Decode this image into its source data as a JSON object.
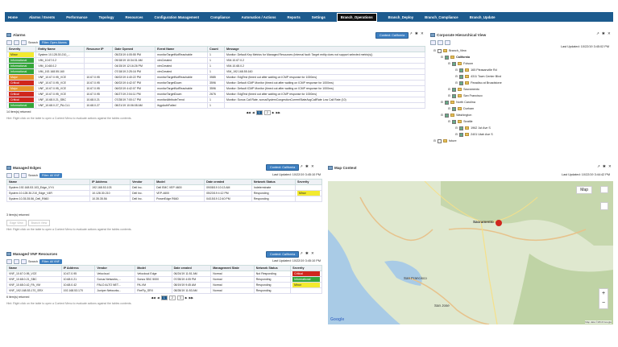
{
  "nav": {
    "items": [
      "Home",
      "Alarms / Events",
      "Performance",
      "Topology",
      "Resources",
      "Configuration Management",
      "Compliance",
      "Automation / Actions",
      "Reports",
      "Settings",
      "Branch_Operations",
      "Branch_Deploy",
      "Branch_Compliance",
      "Branch_Update"
    ],
    "active": "Branch_Operations"
  },
  "alarms": {
    "title": "Alarms",
    "context": "Context: California",
    "search_label": "Search",
    "filter": "Filter: Open Alarms",
    "columns": [
      "Severity",
      "Entity Name",
      "Resource IP",
      "Date Opened",
      "Event Name",
      "Count",
      "Message"
    ],
    "rows": [
      [
        "Minor",
        "System 10.128.30.210_...",
        "",
        "05/23/19 4:05:55 PM",
        "monitorTargetNotReachable",
        "1",
        "Monitor: Default Key Metrics for Managed Resources (Internal fault: Target entity does not support selected metric(s))"
      ],
      [
        "Informational",
        "VIM_10.67.0.2",
        "",
        "09/18/19 10:34:31 AM",
        "vimCreated",
        "1",
        "VIM-10.67.0.2"
      ],
      [
        "Informational",
        "VIM_10.68.0.2",
        "",
        "04/15/19 12:16:26 PM",
        "vimCreated",
        "1",
        "VIM-10.68.0.2"
      ],
      [
        "Informational",
        "VIM_192.168.55.160",
        "",
        "07/18/19 2:25:16 PM",
        "vimCreated",
        "1",
        "VIM_192.168.55.160"
      ],
      [
        "Major",
        "VNF_10.67.0.95_VCE",
        "10.67.0.95",
        "06/02/19 4:40:22 PM",
        "monitorTargetNotReachable",
        "3585",
        "Monitor: EdgTest (timed out after waiting on ICMP response for 1000ms)"
      ],
      [
        "Critical",
        "VNF_10.67.0.95_VCE",
        "10.67.0.95",
        "06/02/19 4:42:07 PM",
        "monitorTargetDown",
        "3596",
        "Monitor: Default ICMP Monitor (timed out after waiting on ICMP response for 1000ms)"
      ],
      [
        "Major",
        "VNF_10.67.0.95_VCE",
        "10.67.0.95",
        "06/02/19 4:42:07 PM",
        "monitorTargetNotReachable",
        "3596",
        "Monitor: Default ICMP Monitor (timed out after waiting on ICMP response for 1000ms)"
      ],
      [
        "Critical",
        "VNF_10.67.0.95_VCE",
        "10.67.0.95",
        "06/27/19 2:04:11 PM",
        "monitorTargetDown",
        "2676",
        "Monitor: EdgTest (timed out after waiting on ICMP response for 1000ms)"
      ],
      [
        "Critical",
        "VNF_10.68.0.21_SBC",
        "10.68.0.21",
        "07/28/19 7:00:17 PM",
        "monitorAttributeTrend",
        "1",
        "Monitor: Sonus Call Rate, sonusSystemCongestionCurrentStateAvgCallRate Low Call Rate (10)"
      ],
      [
        "Informational",
        "VNF_10.68.0.27_PA-CL1",
        "10.68.0.27",
        "08/21/19 10:06:08 AM",
        "ibgpAuthFailed",
        "1",
        ""
      ]
    ],
    "count": "14 item(s) returned",
    "hint": "Hint: Right click on the table to open a Context Menu to evaluate actions against the tables contents.",
    "pages": [
      "1",
      "2"
    ],
    "current_page": "1"
  },
  "hier": {
    "title": "Corporate Hierarchical View",
    "last_updated": "Last Updated: 10/22/19 3:45:02 PM",
    "nodes": [
      {
        "label": "Branch_View",
        "level": 0
      },
      {
        "label": "California",
        "level": 1,
        "bold": true
      },
      {
        "label": "Folsom",
        "level": 2
      },
      {
        "label": "165 Pleasanville Rd",
        "level": 3
      },
      {
        "label": "4311 Town Center Blvd",
        "level": 3
      },
      {
        "label": "Paradiso at Broadstone",
        "level": 3
      },
      {
        "label": "Sacramento",
        "level": 2
      },
      {
        "label": "San Francisco",
        "level": 2
      },
      {
        "label": "North Carolina",
        "level": 1
      },
      {
        "label": "Durham",
        "level": 2
      },
      {
        "label": "Washington",
        "level": 1
      },
      {
        "label": "Seattle",
        "level": 2
      },
      {
        "label": "1962 1st Ave S",
        "level": 3
      },
      {
        "label": "2401 Utah Ave S",
        "level": 3
      },
      {
        "label": "future",
        "level": 0
      }
    ]
  },
  "edges": {
    "title": "Managed Edges",
    "context": "Context: California",
    "search_label": "Search",
    "filter": "Filter: All VNF",
    "last_updated": "Last Updated: 10/22/19 3:45:10 PM",
    "columns": [
      "Name",
      "IP Address",
      "Vendor",
      "Model",
      "Date created",
      "Network Status",
      "Severity"
    ],
    "rows": [
      [
        "System 192.168.53.103_Edge_VY4",
        "192.168.53.103",
        "Dell Inc.",
        "Dell EMC VEP 4600",
        "09/08/19 10:13 AM",
        "Indeterminate",
        ""
      ],
      [
        "System 10.128.30.210_Edge_V4R",
        "10.128.30.210",
        "Dell Inc.",
        "VEP-4600",
        "05/23/19 4:12 PM",
        "Responding",
        "Minor"
      ],
      [
        "System 10.35.35.56_Dell_R660",
        "10.35.35.56",
        "Dell Inc.",
        "PowerEdge R660",
        "04/15/19 12:40 PM",
        "Responding",
        ""
      ]
    ],
    "count": "3 item(s) returned",
    "buttons": [
      "Edge View",
      "Branch View"
    ],
    "hint": "Hint: Right click on the table to open a Context Menu to evaluate actions against the tables contents."
  },
  "map": {
    "title": "Map Context",
    "last_updated": "Last Updated: 10/22/19 3:44:42 PM",
    "map_button": "Map",
    "labels": [
      "Sacramento",
      "San Francisco",
      "San Jose"
    ],
    "google": "Google",
    "attribution": "Map data ©2019 Google"
  },
  "vnf": {
    "title": "Managed VNF Resources",
    "context": "Context: California",
    "search_label": "Search",
    "filter": "Filter: All VNF",
    "last_updated": "Last Updated: 10/22/19 3:45:10 PM",
    "columns": [
      "Name",
      "IP Address",
      "Vendor",
      "Model",
      "Date created",
      "Management State",
      "Network Status",
      "Severity"
    ],
    "rows": [
      [
        "VNF_10.67.0.95_VCE",
        "10.67.0.95",
        "Velocloud",
        "Velocloud Edge",
        "06/24/19 11:51 AM",
        "Normal",
        "Not Responding",
        "Critical"
      ],
      [
        "VNF_10.68.0.21_SBC",
        "10.68.0.21",
        "Sonus Networks,...",
        "Sonus SBC 5000",
        "07/28/19 4:05 PM",
        "Normal",
        "Responding",
        "Informational"
      ],
      [
        "VNF_10.68.0.42_PA_VM",
        "10.68.0.42",
        "PALO ALTO NET...",
        "PA-VM",
        "08/19/19 9:45 AM",
        "Normal",
        "Responding",
        "Minor"
      ],
      [
        "VNF_192.168.53.170_SRX",
        "192.168.53.170",
        "Juniper Networks...",
        "FireFly_SRX",
        "08/28/19 11:53 AM",
        "Normal",
        "Responding",
        ""
      ]
    ],
    "count": "6 item(s) returned",
    "pages": [
      "1",
      "2",
      "3"
    ],
    "current_page": "1",
    "hint": "Hint: Right click on the table to open a Context Menu to evaluate actions against the tables contents."
  },
  "tools": "↗ ✱ ✕"
}
